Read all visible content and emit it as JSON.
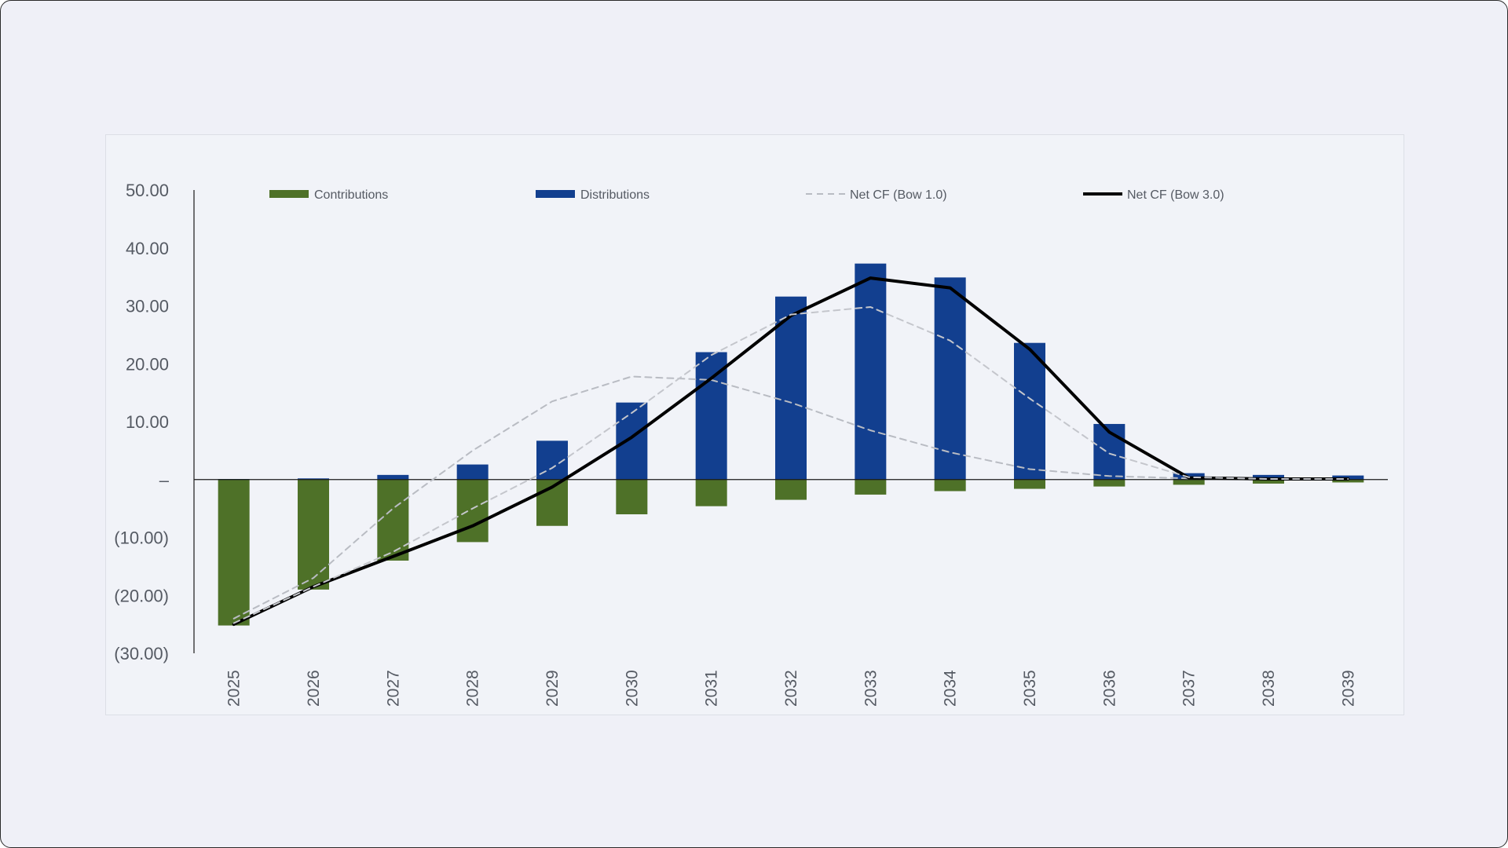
{
  "chart_data": {
    "type": "bar",
    "title": "",
    "xlabel": "",
    "ylabel": "",
    "categories": [
      "2025",
      "2026",
      "2027",
      "2028",
      "2029",
      "2030",
      "2031",
      "2032",
      "2033",
      "2034",
      "2035",
      "2036",
      "2037",
      "2038",
      "2039"
    ],
    "ylim": [
      -30,
      50
    ],
    "y_ticks": [
      {
        "value": 50,
        "label": "50.00"
      },
      {
        "value": 40,
        "label": "40.00"
      },
      {
        "value": 30,
        "label": "30.00"
      },
      {
        "value": 20,
        "label": "20.00"
      },
      {
        "value": 10,
        "label": "10.00"
      },
      {
        "value": 0,
        "label": "–"
      },
      {
        "value": -10,
        "label": "(10.00)"
      },
      {
        "value": -20,
        "label": "(20.00)"
      },
      {
        "value": -30,
        "label": "(30.00)"
      }
    ],
    "grid": false,
    "legend_position": "top",
    "series": [
      {
        "name": "Contributions",
        "kind": "bar",
        "color": "#4e7128",
        "values": [
          -25.2,
          -19.0,
          -14.0,
          -10.8,
          -8.0,
          -6.0,
          -4.6,
          -3.5,
          -2.6,
          -2.0,
          -1.6,
          -1.2,
          -0.9,
          -0.7,
          -0.5
        ]
      },
      {
        "name": "Distributions",
        "kind": "bar",
        "color": "#123f8f",
        "values": [
          0.1,
          0.2,
          0.8,
          2.6,
          6.7,
          13.3,
          22.0,
          31.6,
          37.3,
          34.9,
          23.6,
          9.6,
          1.1,
          0.8,
          0.7
        ]
      },
      {
        "name": "Net CF (Bow 1.0)",
        "kind": "line",
        "style": "dashed",
        "color": "#b9bcc3",
        "values": [
          -24.0,
          -17.0,
          -5.0,
          5.0,
          13.5,
          17.8,
          17.2,
          13.3,
          8.5,
          4.7,
          1.8,
          0.6,
          0.2,
          0.1,
          0.1
        ]
      },
      {
        "name": "Net CF (Bow 3.0)",
        "kind": "line",
        "style": "solid",
        "color": "#000000",
        "values": [
          -25.0,
          -18.5,
          -13.3,
          -8.0,
          -1.3,
          7.3,
          17.5,
          28.3,
          34.8,
          33.1,
          22.5,
          8.2,
          0.3,
          0.1,
          0.1
        ]
      },
      {
        "name": "",
        "kind": "line",
        "style": "dashed",
        "color": "#c4c6cc",
        "values": [
          -24.8,
          -18.5,
          -12.5,
          -5.0,
          2.0,
          11.5,
          21.5,
          28.5,
          29.8,
          24.0,
          14.0,
          4.5,
          0.4,
          0.1,
          0.1
        ]
      }
    ]
  }
}
